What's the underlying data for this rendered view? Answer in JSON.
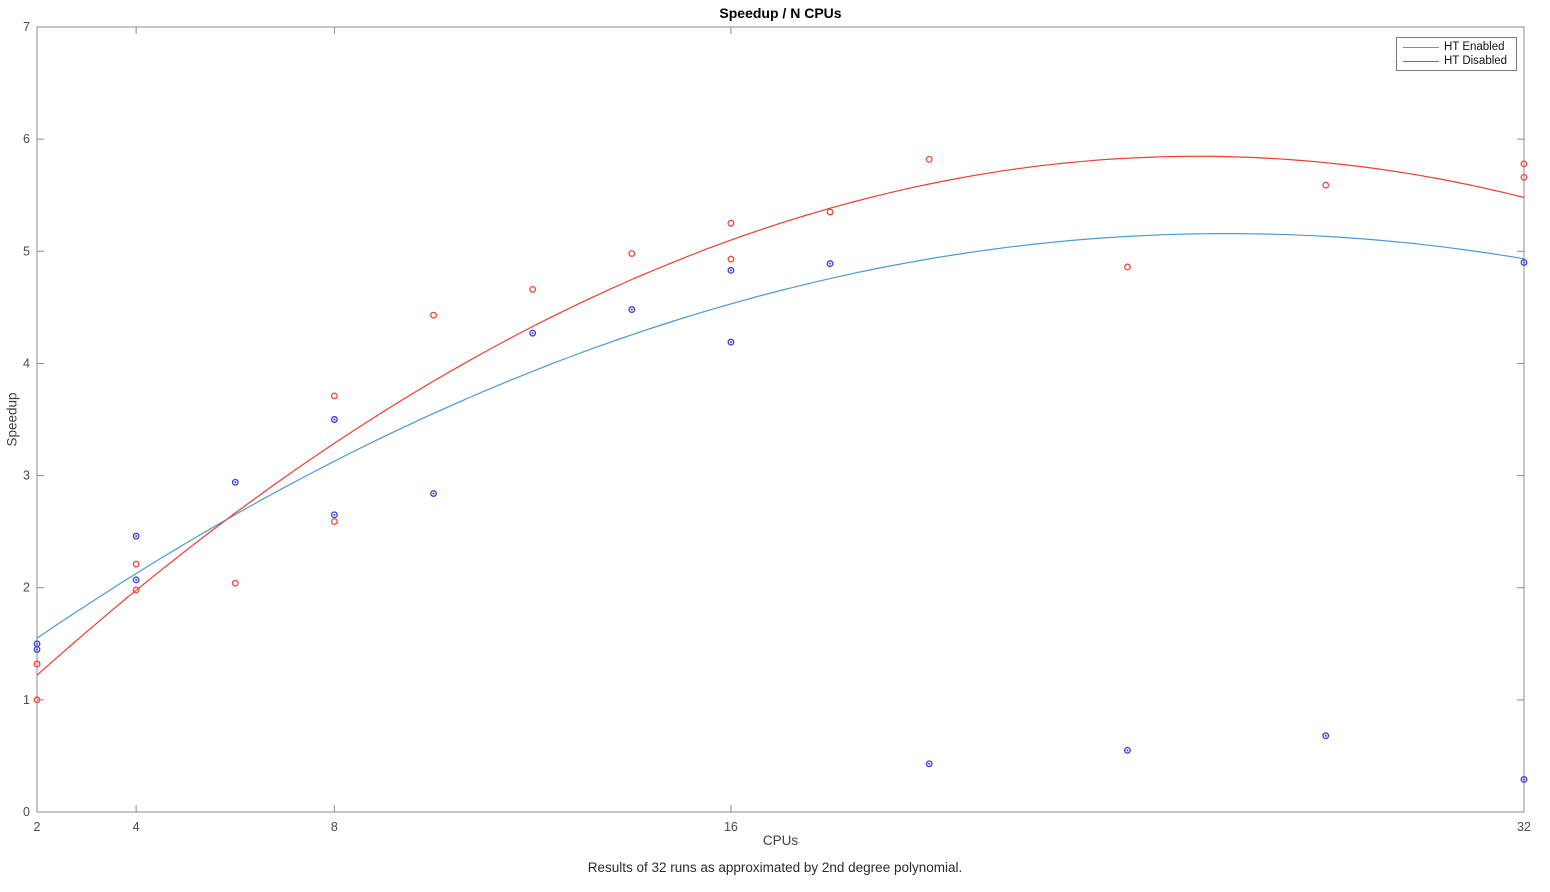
{
  "figure": {
    "title": "Speedup / N CPUs",
    "xlabel": "CPUs",
    "ylabel": "Speedup",
    "caption": "Results of 32 runs as approximated by 2nd degree polynomial."
  },
  "colors": {
    "axis": "#8c8c8c",
    "tick_text": "#4a4a4a",
    "background": "#ffffff",
    "ht_enabled_line": "#4d99d2",
    "ht_enabled_marker": "#3c3cdc",
    "ht_disabled_line": "#f03c32",
    "ht_disabled_marker": "#f0463c"
  },
  "chart_data": {
    "type": "scatter",
    "title": "Speedup / N CPUs",
    "xlabel": "CPUs",
    "ylabel": "Speedup",
    "x_scale": "linear",
    "xlim": [
      2,
      32
    ],
    "ylim": [
      0,
      7
    ],
    "x_ticks": [
      2,
      4,
      8,
      16,
      32
    ],
    "y_ticks": [
      0,
      1,
      2,
      3,
      4,
      5,
      6,
      7
    ],
    "grid": false,
    "legend_position": "top-right",
    "series": [
      {
        "name": "HT Enabled",
        "line_color": "#4d99d2",
        "marker_color": "#3c3cdc",
        "marker": "o-dot",
        "points": [
          [
            2,
            1.5
          ],
          [
            2,
            1.45
          ],
          [
            4,
            2.46
          ],
          [
            4,
            2.07
          ],
          [
            6,
            2.94
          ],
          [
            8,
            3.5
          ],
          [
            8,
            2.65
          ],
          [
            10,
            2.84
          ],
          [
            12,
            4.27
          ],
          [
            14,
            4.48
          ],
          [
            16,
            4.83
          ],
          [
            16,
            4.19
          ],
          [
            18,
            4.89
          ],
          [
            20,
            0.43
          ],
          [
            24,
            0.55
          ],
          [
            28,
            0.68
          ],
          [
            32,
            4.9
          ],
          [
            32,
            0.29
          ]
        ],
        "fit_poly2": [
          -0.00626,
          0.3256,
          0.924
        ]
      },
      {
        "name": "HT Disabled",
        "line_color": "#f03c32",
        "marker_color": "#f0463c",
        "marker": "o",
        "points": [
          [
            2,
            1.32
          ],
          [
            2,
            1.0
          ],
          [
            4,
            2.21
          ],
          [
            4,
            1.98
          ],
          [
            6,
            2.04
          ],
          [
            8,
            3.71
          ],
          [
            8,
            2.59
          ],
          [
            10,
            4.43
          ],
          [
            12,
            4.66
          ],
          [
            14,
            4.98
          ],
          [
            16,
            5.25
          ],
          [
            16,
            4.93
          ],
          [
            18,
            5.35
          ],
          [
            20,
            5.82
          ],
          [
            24,
            4.86
          ],
          [
            28,
            5.59
          ],
          [
            32,
            5.78
          ],
          [
            32,
            5.66
          ]
        ],
        "fit_poly2": [
          -0.008447,
          0.4292,
          0.395
        ]
      }
    ]
  }
}
